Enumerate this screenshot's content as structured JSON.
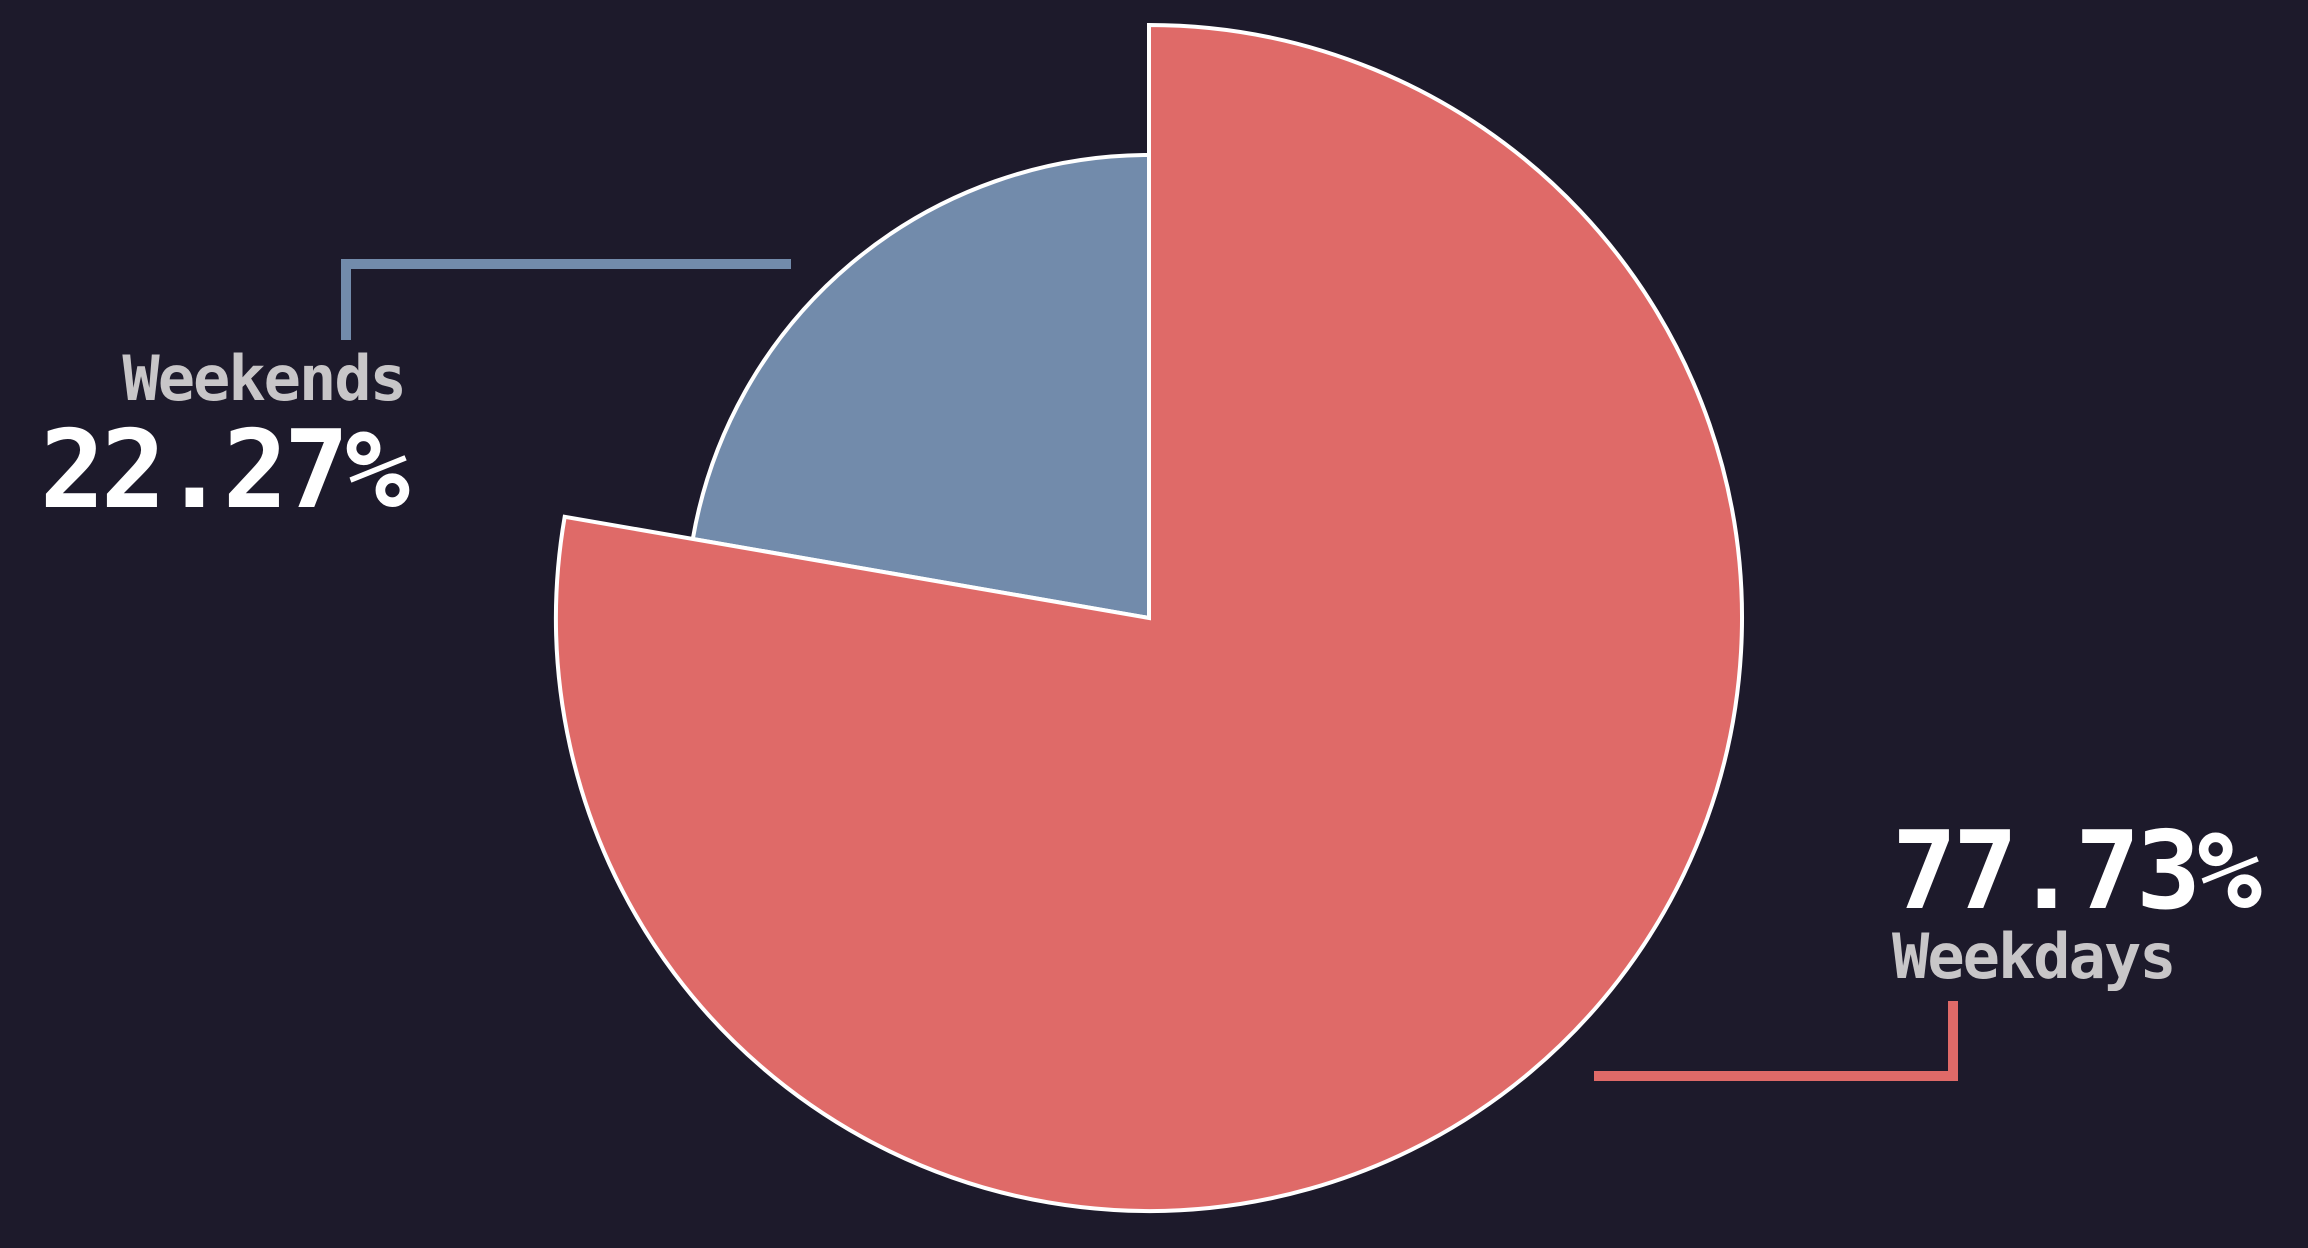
{
  "chart_data": {
    "type": "pie",
    "title": "",
    "slices": [
      {
        "label": "Weekends",
        "value": 22.27,
        "value_label": "22.27%",
        "color": "#728bab"
      },
      {
        "label": "Weekdays",
        "value": 77.73,
        "value_label": "77.73%",
        "color": "#df6a68"
      }
    ],
    "background": "#1d1a2b",
    "legend": "none"
  }
}
